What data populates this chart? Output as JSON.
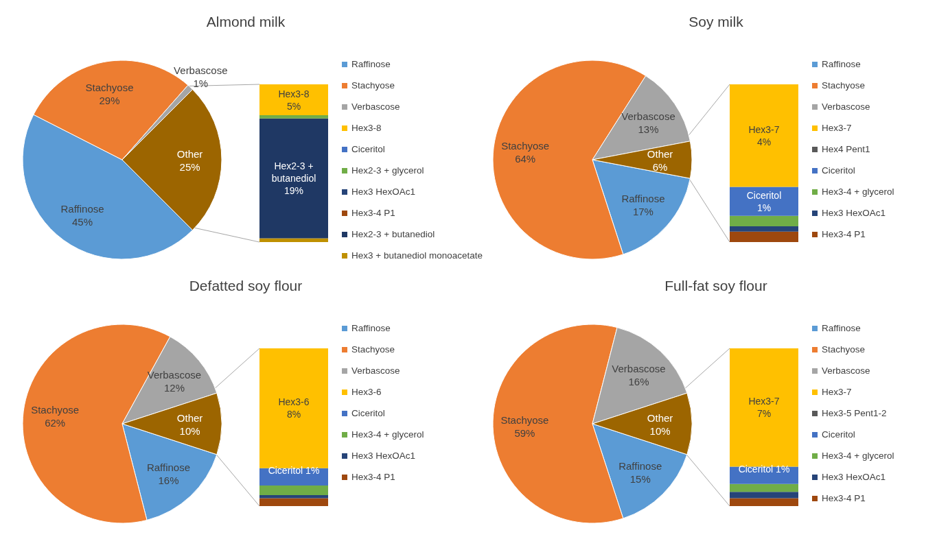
{
  "chart_data": [
    {
      "type": "pie",
      "legend": "right",
      "title": "Almond milk",
      "categories": [
        "Raffinose",
        "Stachyose",
        "Verbascose",
        "Other"
      ],
      "values": [
        45,
        29,
        1,
        25
      ],
      "value_labels": [
        "45%",
        "29%",
        "1%",
        "25%"
      ],
      "colors": [
        "#5b9bd5",
        "#ed7d31",
        "#a5a5a5",
        "#9c6500"
      ]
    },
    {
      "type": "bar",
      "stacked": true,
      "legend": "right",
      "categories": [
        null
      ],
      "series": [
        {
          "name": "Hex3 + butanediol monoacetate",
          "color": "#bf9000",
          "values": [
            0.6
          ],
          "value_labels": [
            null
          ]
        },
        {
          "name": "Hex2-3 + butanediol",
          "color": "#1f3864",
          "values": [
            19
          ],
          "value_labels": [
            "19%"
          ]
        },
        {
          "name": "Hex3-4 P1",
          "color": "#9e480e",
          "values": [
            0
          ],
          "value_labels": [
            null
          ]
        },
        {
          "name": "Hex3 HexOAc1",
          "color": "#264478",
          "values": [
            0
          ],
          "value_labels": [
            null
          ]
        },
        {
          "name": "Hex2-3 + glycerol",
          "color": "#70ad47",
          "values": [
            0.5
          ],
          "value_labels": [
            null
          ]
        },
        {
          "name": "Ciceritol",
          "color": "#4472c4",
          "values": [
            0
          ],
          "value_labels": [
            null
          ]
        },
        {
          "name": "Hex3-8",
          "color": "#ffc000",
          "values": [
            4.9
          ],
          "value_labels": [
            "5%"
          ]
        }
      ]
    },
    {
      "type": "pie",
      "legend": "right",
      "title": "Soy milk",
      "categories": [
        "Raffinose",
        "Stachyose",
        "Verbascose",
        "Other"
      ],
      "values": [
        17,
        64,
        13,
        6
      ],
      "value_labels": [
        "17%",
        "64%",
        "13%",
        "6%"
      ],
      "colors": [
        "#5b9bd5",
        "#ed7d31",
        "#a5a5a5",
        "#9c6500"
      ]
    },
    {
      "type": "bar",
      "stacked": true,
      "legend": "right",
      "categories": [
        null
      ],
      "series": [
        {
          "name": "Hex3-4 P1",
          "color": "#9e480e",
          "values": [
            0.4
          ],
          "value_labels": [
            null
          ]
        },
        {
          "name": "Hex3 HexOAc1",
          "color": "#264478",
          "values": [
            0.2
          ],
          "value_labels": [
            null
          ]
        },
        {
          "name": "Hex3-4 + glycerol",
          "color": "#70ad47",
          "values": [
            0.4
          ],
          "value_labels": [
            null
          ]
        },
        {
          "name": "Ciceritol",
          "color": "#4472c4",
          "values": [
            1.1
          ],
          "value_labels": [
            "1%"
          ]
        },
        {
          "name": "Hex4 Pent1",
          "color": "#595959",
          "values": [
            0
          ],
          "value_labels": [
            null
          ]
        },
        {
          "name": "Hex3-7",
          "color": "#ffc000",
          "values": [
            3.9
          ],
          "value_labels": [
            "4%"
          ]
        }
      ]
    },
    {
      "type": "pie",
      "legend": "right",
      "title": "Defatted soy flour",
      "categories": [
        "Raffinose",
        "Stachyose",
        "Verbascose",
        "Other"
      ],
      "values": [
        16,
        62,
        12,
        10
      ],
      "value_labels": [
        "16%",
        "62%",
        "12%",
        "10%"
      ],
      "colors": [
        "#5b9bd5",
        "#ed7d31",
        "#a5a5a5",
        "#9c6500"
      ]
    },
    {
      "type": "bar",
      "stacked": true,
      "legend": "right",
      "categories": [
        null
      ],
      "series": [
        {
          "name": "Hex3-4 P1",
          "color": "#9e480e",
          "values": [
            0.5
          ],
          "value_labels": [
            null
          ]
        },
        {
          "name": "Hex3 HexOAc1",
          "color": "#264478",
          "values": [
            0.2
          ],
          "value_labels": [
            null
          ]
        },
        {
          "name": "Hex3-4 + glycerol",
          "color": "#70ad47",
          "values": [
            0.6
          ],
          "value_labels": [
            null
          ]
        },
        {
          "name": "Ciceritol",
          "color": "#4472c4",
          "values": [
            1.1
          ],
          "value_labels": [
            "1%"
          ]
        },
        {
          "name": "Hex3-6",
          "color": "#ffc000",
          "values": [
            7.6
          ],
          "value_labels": [
            "8%"
          ]
        }
      ]
    },
    {
      "type": "pie",
      "legend": "right",
      "title": "Full-fat soy flour",
      "categories": [
        "Raffinose",
        "Stachyose",
        "Verbascose",
        "Other"
      ],
      "values": [
        15,
        59,
        16,
        10
      ],
      "value_labels": [
        "15%",
        "59%",
        "16%",
        "10%"
      ],
      "colors": [
        "#5b9bd5",
        "#ed7d31",
        "#a5a5a5",
        "#9c6500"
      ]
    },
    {
      "type": "bar",
      "stacked": true,
      "legend": "right",
      "categories": [
        null
      ],
      "series": [
        {
          "name": "Hex3-4 P1",
          "color": "#9e480e",
          "values": [
            0.5
          ],
          "value_labels": [
            null
          ]
        },
        {
          "name": "Hex3 HexOAc1",
          "color": "#264478",
          "values": [
            0.4
          ],
          "value_labels": [
            null
          ]
        },
        {
          "name": "Hex3-4 + glycerol",
          "color": "#70ad47",
          "values": [
            0.5
          ],
          "value_labels": [
            null
          ]
        },
        {
          "name": "Ciceritol",
          "color": "#4472c4",
          "values": [
            1.1
          ],
          "value_labels": [
            "1%"
          ]
        },
        {
          "name": "Hex3-5 Pent1-2",
          "color": "#595959",
          "values": [
            0
          ],
          "value_labels": [
            null
          ]
        },
        {
          "name": "Hex3-7",
          "color": "#ffc000",
          "values": [
            7.5
          ],
          "value_labels": [
            "7%"
          ]
        }
      ]
    }
  ]
}
